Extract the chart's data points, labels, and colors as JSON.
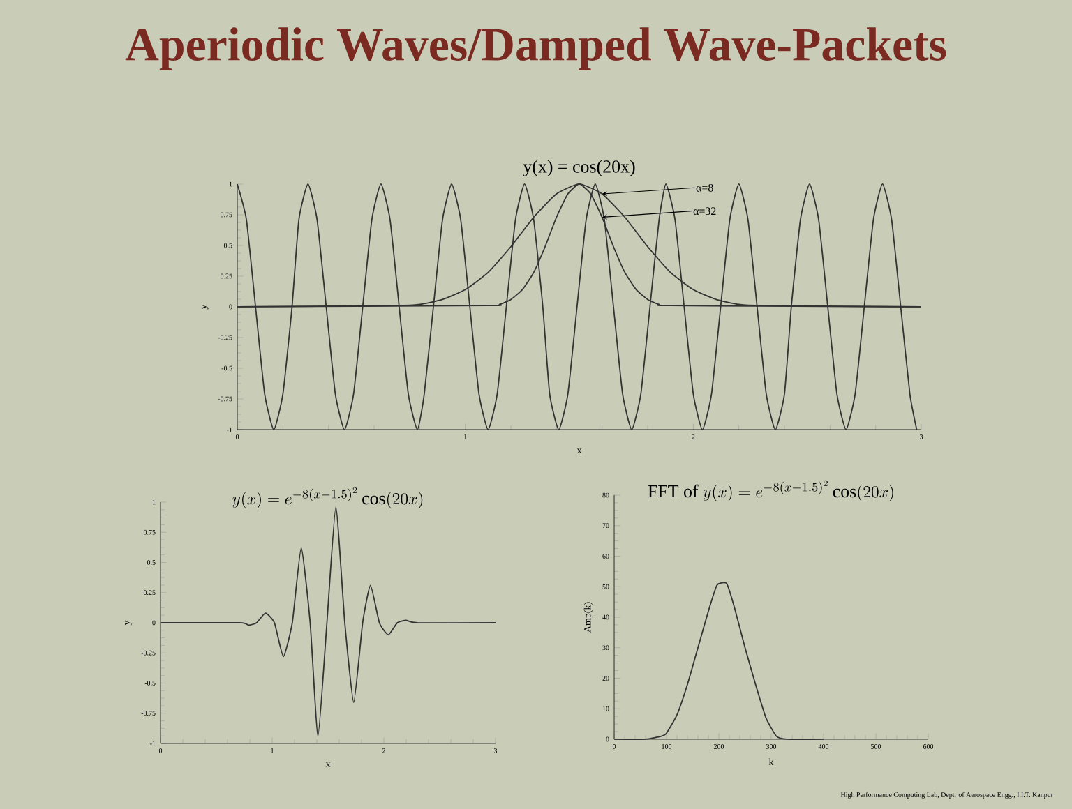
{
  "chart_data": [
    {
      "type": "line",
      "title": "Aperiodic Waves/Damped Wave-Packets",
      "subtitle": "y(x) = cos(20x)",
      "xlabel": "x",
      "ylabel": "y",
      "xlim": [
        0,
        3
      ],
      "xticks": [
        0,
        1,
        2,
        3
      ],
      "ylim": [
        -1,
        1
      ],
      "yticks": [
        -1,
        -0.75,
        -0.5,
        -0.25,
        0,
        0.25,
        0.5,
        0.75,
        1
      ],
      "series": [
        {
          "color": "#333333",
          "x": [
            0,
            0.04,
            0.08,
            0.12,
            0.16,
            0.2,
            0.24,
            0.27,
            0.31,
            0.35,
            0.39,
            0.43,
            0.47,
            0.51,
            0.55,
            0.59,
            0.63,
            0.67,
            0.71,
            0.75,
            0.79,
            0.82,
            0.86,
            0.9,
            0.94,
            0.98,
            1.02,
            1.06,
            1.1,
            1.14,
            1.18,
            1.22,
            1.26,
            1.3,
            1.34,
            1.37,
            1.41,
            1.45,
            1.49,
            1.53,
            1.57,
            1.61,
            1.65,
            1.69,
            1.73,
            1.77,
            1.81,
            1.85,
            1.88,
            1.92,
            1.96,
            2.0,
            2.04,
            2.08,
            2.12,
            2.16,
            2.2,
            2.24,
            2.28,
            2.32,
            2.36,
            2.4,
            2.43,
            2.47,
            2.51,
            2.55,
            2.59,
            2.63,
            2.67,
            2.71,
            2.75,
            2.79,
            2.83,
            2.87,
            2.91,
            2.95,
            2.98
          ],
          "values": [
            1,
            0.71,
            0,
            -0.71,
            -1,
            -0.71,
            0,
            0.71,
            1,
            0.71,
            0,
            -0.71,
            -1,
            -0.71,
            0,
            0.71,
            1,
            0.71,
            0,
            -0.71,
            -1,
            -0.71,
            0,
            0.71,
            1,
            0.71,
            0,
            -0.71,
            -1,
            -0.71,
            0,
            0.71,
            1,
            0.71,
            0,
            -0.71,
            -1,
            -0.71,
            0,
            0.71,
            1,
            0.71,
            0,
            -0.71,
            -1,
            -0.71,
            0,
            0.71,
            1,
            0.71,
            0,
            -0.71,
            -1,
            -0.71,
            0,
            0.71,
            1,
            0.71,
            0,
            -0.71,
            -1,
            -0.71,
            0,
            0.71,
            1,
            0.71,
            0,
            -0.71,
            -1,
            -0.71,
            0,
            0.71,
            1,
            0.71,
            0,
            -0.71,
            -1
          ]
        },
        {
          "name": "α=8",
          "color": "#333333",
          "x": [
            0,
            0.7,
            0.8,
            0.9,
            1.0,
            1.1,
            1.2,
            1.3,
            1.4,
            1.5,
            1.6,
            1.7,
            1.8,
            1.9,
            2.0,
            2.1,
            2.2,
            2.3,
            3
          ],
          "values": [
            0,
            0.01,
            0.02,
            0.06,
            0.14,
            0.28,
            0.49,
            0.73,
            0.92,
            1,
            0.92,
            0.73,
            0.49,
            0.28,
            0.14,
            0.06,
            0.02,
            0.01,
            0
          ]
        },
        {
          "name": "α=32",
          "color": "#333333",
          "x": [
            0,
            1.1,
            1.15,
            1.2,
            1.25,
            1.3,
            1.35,
            1.4,
            1.45,
            1.5,
            1.55,
            1.6,
            1.65,
            1.7,
            1.75,
            1.8,
            1.85,
            1.9,
            3
          ],
          "values": [
            0,
            0.01,
            0.02,
            0.06,
            0.14,
            0.28,
            0.49,
            0.73,
            0.92,
            1,
            0.92,
            0.73,
            0.49,
            0.28,
            0.14,
            0.06,
            0.02,
            0.01,
            0
          ]
        }
      ]
    },
    {
      "type": "line",
      "title": "y(x) = e^{-8(x-1.5)^2}\\cos(20x)",
      "xlabel": "x",
      "ylabel": "y",
      "xlim": [
        0,
        3
      ],
      "xticks": [
        0,
        1,
        2,
        3
      ],
      "ylim": [
        -1,
        1
      ],
      "yticks": [
        -1,
        -0.75,
        -0.5,
        -0.25,
        0,
        0.25,
        0.5,
        0.75,
        1
      ],
      "series": [
        {
          "color": "#333333",
          "x": [
            0,
            0.71,
            0.79,
            0.86,
            0.94,
            1.02,
            1.1,
            1.18,
            1.26,
            1.34,
            1.41,
            1.49,
            1.57,
            1.65,
            1.73,
            1.81,
            1.88,
            1.96,
            2.04,
            2.12,
            2.2,
            2.3,
            3
          ],
          "values": [
            0,
            0,
            -0.02,
            0,
            0.08,
            0,
            -0.28,
            0,
            0.62,
            0,
            -0.94,
            0,
            0.96,
            0,
            -0.66,
            0,
            0.31,
            0,
            -0.1,
            0,
            0.02,
            0,
            0
          ]
        }
      ]
    },
    {
      "type": "line",
      "title": "\\mathrm{FFT\\ of}\\ y(x) = e^{-8(x-1.5)^2}\\cos(20x)",
      "xlabel": "k",
      "ylabel": "Amp(k)",
      "xlim": [
        0,
        600
      ],
      "xticks": [
        0,
        100,
        200,
        300,
        400,
        500,
        600
      ],
      "ylim": [
        0,
        80
      ],
      "yticks": [
        0,
        10,
        20,
        30,
        40,
        50,
        60,
        70,
        80
      ],
      "annotations": [
        "High Performance Computing Lab, Dept. of Aerospace Engg., I.I.T. Kanpur"
      ],
      "series": [
        {
          "color": "#333333",
          "x": [
            0,
            60,
            90,
            100,
            120,
            140,
            160,
            180,
            195,
            200,
            215,
            230,
            250,
            270,
            290,
            310,
            330,
            400
          ],
          "values": [
            0,
            0,
            1,
            2,
            8,
            18,
            30,
            42,
            50,
            51,
            51,
            43,
            30,
            18,
            7,
            1,
            0,
            0
          ]
        }
      ]
    }
  ]
}
